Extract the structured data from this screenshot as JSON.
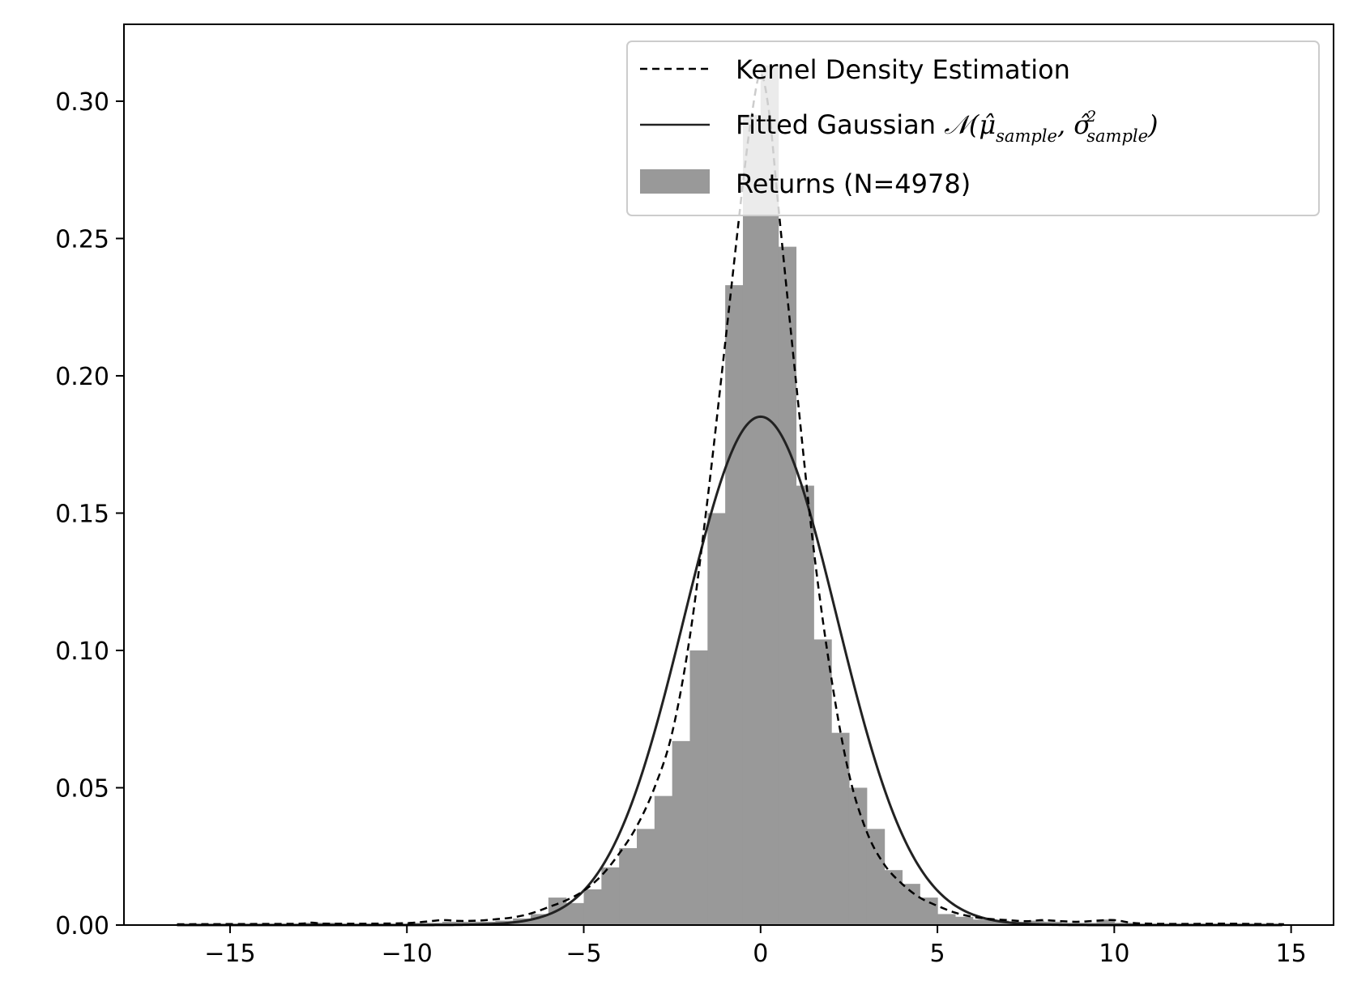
{
  "chart_data": {
    "type": "bar",
    "xlim": [
      -18,
      16.2
    ],
    "ylim": [
      0,
      0.328
    ],
    "x_ticks": [
      -15,
      -10,
      -5,
      0,
      5,
      10,
      15
    ],
    "x_tick_labels": [
      "−15",
      "−10",
      "−5",
      "0",
      "5",
      "10",
      "15"
    ],
    "y_ticks": [
      0.0,
      0.05,
      0.1,
      0.15,
      0.2,
      0.25,
      0.3
    ],
    "y_tick_labels": [
      "0.00",
      "0.05",
      "0.10",
      "0.15",
      "0.20",
      "0.25",
      "0.30"
    ],
    "legend_position": "upper-right",
    "grid": false,
    "colors": {
      "histogram": "#999999",
      "kde": "#000000",
      "gaussian": "#222222"
    },
    "histogram": {
      "name": "Returns (N=4978)",
      "bin_width": 0.5,
      "bins": [
        [
          -16.5,
          0.0003
        ],
        [
          -16.0,
          0.0003
        ],
        [
          -15.5,
          0.0003
        ],
        [
          -15.0,
          0.0003
        ],
        [
          -14.5,
          0.0003
        ],
        [
          -14.0,
          0.0003
        ],
        [
          -13.5,
          0.0003
        ],
        [
          -13.0,
          0.0008
        ],
        [
          -12.5,
          0.0008
        ],
        [
          -12.0,
          0.0003
        ],
        [
          -11.5,
          0.0003
        ],
        [
          -11.0,
          0.0003
        ],
        [
          -10.5,
          0.0003
        ],
        [
          -10.0,
          0.0008
        ],
        [
          -9.5,
          0.0008
        ],
        [
          -9.0,
          0.0012
        ],
        [
          -8.5,
          0.0012
        ],
        [
          -8.0,
          0.0012
        ],
        [
          -7.5,
          0.0016
        ],
        [
          -7.0,
          0.0024
        ],
        [
          -6.5,
          0.004
        ],
        [
          -6.0,
          0.01
        ],
        [
          -5.5,
          0.008
        ],
        [
          -5.0,
          0.013
        ],
        [
          -4.5,
          0.021
        ],
        [
          -4.0,
          0.028
        ],
        [
          -3.5,
          0.035
        ],
        [
          -3.0,
          0.047
        ],
        [
          -2.5,
          0.067
        ],
        [
          -2.0,
          0.1
        ],
        [
          -1.5,
          0.15
        ],
        [
          -1.0,
          0.233
        ],
        [
          -0.5,
          0.295
        ],
        [
          0.0,
          0.313
        ],
        [
          0.5,
          0.247
        ],
        [
          1.0,
          0.16
        ],
        [
          1.5,
          0.104
        ],
        [
          2.0,
          0.07
        ],
        [
          2.5,
          0.05
        ],
        [
          3.0,
          0.035
        ],
        [
          3.5,
          0.02
        ],
        [
          4.0,
          0.015
        ],
        [
          4.5,
          0.01
        ],
        [
          5.0,
          0.004
        ],
        [
          5.5,
          0.003
        ],
        [
          6.0,
          0.002
        ],
        [
          6.5,
          0.0016
        ],
        [
          7.0,
          0.0012
        ],
        [
          7.5,
          0.0016
        ],
        [
          8.0,
          0.0012
        ],
        [
          8.5,
          0.0008
        ],
        [
          9.0,
          0.0008
        ],
        [
          9.5,
          0.002
        ],
        [
          10.0,
          0.0008
        ],
        [
          10.5,
          0.0003
        ],
        [
          11.0,
          0.0003
        ],
        [
          11.5,
          0.0003
        ],
        [
          12.0,
          0.0003
        ],
        [
          12.5,
          0.0003
        ],
        [
          13.0,
          0.0003
        ],
        [
          13.5,
          0.0003
        ],
        [
          14.0,
          0.0003
        ],
        [
          14.5,
          0.0003
        ]
      ]
    },
    "kde": {
      "name": "Kernel Density Estimation",
      "x": [
        -16.5,
        -14,
        -13,
        -12.7,
        -12.3,
        -11,
        -10,
        -9.5,
        -9,
        -8.5,
        -8,
        -7.5,
        -7,
        -6.5,
        -6,
        -5.5,
        -5,
        -4.5,
        -4,
        -3.5,
        -3,
        -2.5,
        -2,
        -1.5,
        -1,
        -0.5,
        -0.25,
        0,
        0.25,
        0.5,
        1,
        1.5,
        2,
        2.5,
        3,
        3.5,
        4,
        4.5,
        5,
        5.5,
        6,
        6.5,
        7,
        7.5,
        8,
        8.5,
        9,
        9.5,
        10,
        10.5,
        11,
        12,
        13,
        14,
        14.8
      ],
      "y": [
        0.0003,
        0.0004,
        0.0005,
        0.0009,
        0.0005,
        0.0005,
        0.0007,
        0.0012,
        0.0018,
        0.0015,
        0.0016,
        0.0021,
        0.0028,
        0.0042,
        0.0065,
        0.009,
        0.0125,
        0.018,
        0.026,
        0.036,
        0.05,
        0.07,
        0.105,
        0.155,
        0.212,
        0.27,
        0.295,
        0.31,
        0.295,
        0.262,
        0.198,
        0.137,
        0.09,
        0.055,
        0.034,
        0.022,
        0.015,
        0.01,
        0.007,
        0.0045,
        0.003,
        0.0022,
        0.0018,
        0.0014,
        0.0018,
        0.0014,
        0.0012,
        0.0016,
        0.0018,
        0.0008,
        0.0005,
        0.0004,
        0.0005,
        0.0004,
        0.0003
      ]
    },
    "gaussian": {
      "name": "Fitted Gaussian",
      "mean": 0.0,
      "std": 2.155
    }
  }
}
